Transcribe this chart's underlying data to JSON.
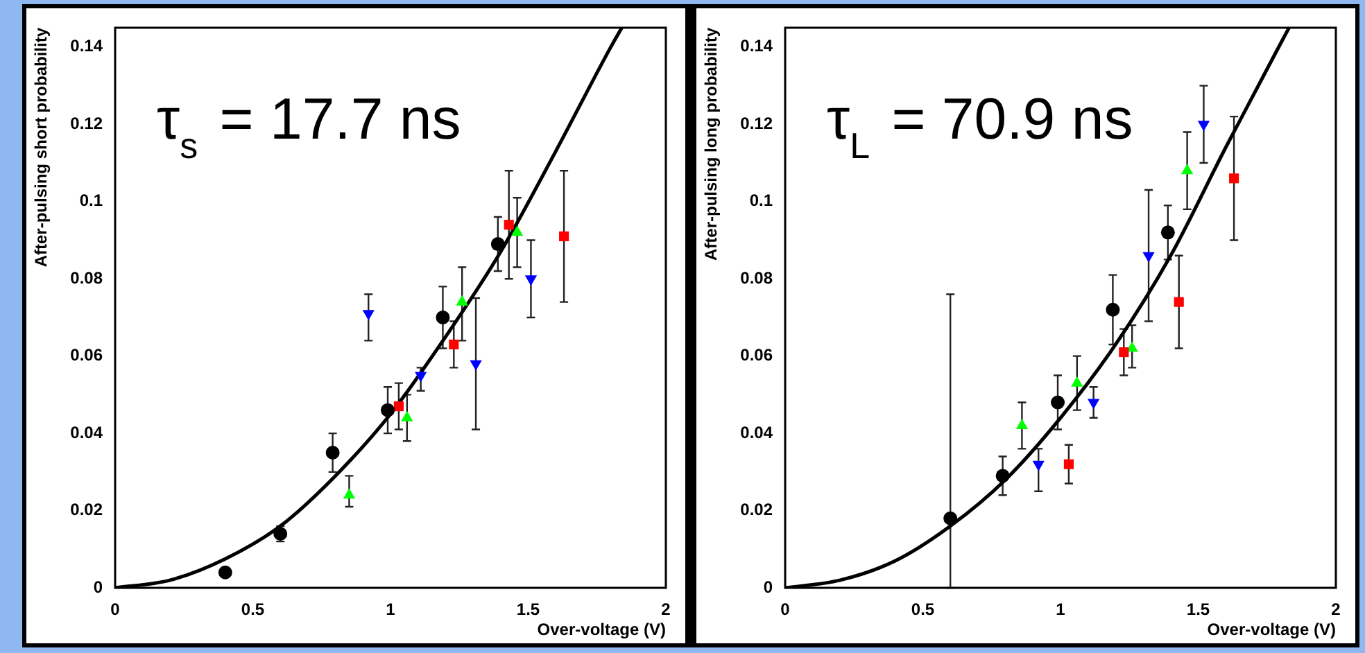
{
  "chart_data": [
    {
      "type": "scatter",
      "xlabel": "Over-voltage (V)",
      "ylabel": "After-pulsing short probability",
      "xlim": [
        0,
        2
      ],
      "ylim": [
        0,
        0.145
      ],
      "xticks": [
        0,
        0.5,
        1,
        1.5,
        2
      ],
      "yticks": [
        0,
        0.02,
        0.04,
        0.06,
        0.08,
        0.1,
        0.12,
        0.14
      ],
      "annotations": [
        "τ$_{s}$ = 17.7 ns"
      ],
      "series": [
        {
          "color": "#000000",
          "marker": "circle",
          "x": [
            0.4,
            0.6,
            0.79,
            0.99,
            1.19,
            1.39
          ],
          "values": [
            0.004,
            0.014,
            0.035,
            0.046,
            0.07,
            0.089
          ],
          "errors": [
            null,
            [
              0.012,
              0.016
            ],
            [
              0.03,
              0.04
            ],
            [
              0.04,
              0.052
            ],
            [
              0.062,
              0.078
            ],
            [
              0.082,
              0.096
            ]
          ]
        },
        {
          "color": "#ff0000",
          "marker": "square",
          "x": [
            1.03,
            1.23,
            1.43,
            1.63
          ],
          "values": [
            0.047,
            0.063,
            0.094,
            0.091
          ],
          "errors": [
            [
              0.041,
              0.053
            ],
            [
              0.057,
              0.069
            ],
            [
              0.08,
              0.108
            ],
            [
              0.074,
              0.108
            ]
          ]
        },
        {
          "color": "#00ff00",
          "marker": "triangle",
          "x": [
            0.85,
            1.06,
            1.26,
            1.46
          ],
          "values": [
            0.024,
            0.044,
            0.074,
            0.092
          ],
          "errors": [
            [
              0.021,
              0.029
            ],
            [
              0.038,
              0.05
            ],
            [
              0.064,
              0.083
            ],
            [
              0.083,
              0.101
            ]
          ]
        },
        {
          "color": "#0000ff",
          "marker": "triangle-down",
          "x": [
            0.92,
            1.11,
            1.31,
            1.51
          ],
          "values": [
            0.071,
            0.055,
            0.058,
            0.08
          ],
          "errors": [
            [
              0.064,
              0.076
            ],
            [
              0.051,
              0.057
            ],
            [
              0.041,
              0.075
            ],
            [
              0.07,
              0.09
            ]
          ]
        },
        {
          "type": "line",
          "color": "#000000",
          "marker": "none",
          "x": [
            0,
            0.2,
            0.4,
            0.6,
            0.8,
            1,
            1.2,
            1.4,
            1.6,
            1.8,
            1.84
          ],
          "values": [
            0,
            0.002,
            0.0075,
            0.016,
            0.029,
            0.045,
            0.065,
            0.087,
            0.113,
            0.14,
            0.145
          ]
        }
      ]
    },
    {
      "type": "scatter",
      "xlabel": "Over-voltage (V)",
      "ylabel": "After-pulsing long probability",
      "xlim": [
        0,
        2
      ],
      "ylim": [
        0,
        0.145
      ],
      "xticks": [
        0,
        0.5,
        1,
        1.5,
        2
      ],
      "yticks": [
        0,
        0.02,
        0.04,
        0.06,
        0.08,
        0.1,
        0.12,
        0.14
      ],
      "annotations": [
        "τ$_{L}$ = 70.9 ns"
      ],
      "series": [
        {
          "color": "#000000",
          "marker": "circle",
          "x": [
            0.6,
            0.79,
            0.99,
            1.19,
            1.39
          ],
          "values": [
            0.018,
            0.029,
            0.048,
            0.072,
            0.092
          ],
          "errors": [
            [
              0,
              0.076
            ],
            [
              0.024,
              0.034
            ],
            [
              0.041,
              0.055
            ],
            [
              0.063,
              0.081
            ],
            [
              0.085,
              0.099
            ]
          ]
        },
        {
          "color": "#ff0000",
          "marker": "square",
          "x": [
            1.03,
            1.23,
            1.43,
            1.63
          ],
          "values": [
            0.032,
            0.061,
            0.074,
            0.106
          ],
          "errors": [
            [
              0.027,
              0.037
            ],
            [
              0.055,
              0.067
            ],
            [
              0.062,
              0.086
            ],
            [
              0.09,
              0.122
            ]
          ]
        },
        {
          "color": "#00ff00",
          "marker": "triangle",
          "x": [
            0.86,
            1.06,
            1.26,
            1.46
          ],
          "values": [
            0.042,
            0.053,
            0.062,
            0.108
          ],
          "errors": [
            [
              0.036,
              0.048
            ],
            [
              0.046,
              0.06
            ],
            [
              0.057,
              0.068
            ],
            [
              0.098,
              0.118
            ]
          ]
        },
        {
          "color": "#0000ff",
          "marker": "triangle-down",
          "x": [
            0.92,
            1.12,
            1.32,
            1.52
          ],
          "values": [
            0.032,
            0.048,
            0.086,
            0.12
          ],
          "errors": [
            [
              0.025,
              0.036
            ],
            [
              0.044,
              0.052
            ],
            [
              0.069,
              0.103
            ],
            [
              0.11,
              0.13
            ]
          ]
        },
        {
          "type": "line",
          "color": "#000000",
          "marker": "none",
          "x": [
            0,
            0.2,
            0.4,
            0.6,
            0.8,
            1,
            1.2,
            1.4,
            1.6,
            1.8,
            1.83
          ],
          "values": [
            0,
            0.002,
            0.007,
            0.016,
            0.028,
            0.044,
            0.063,
            0.086,
            0.114,
            0.141,
            0.145
          ]
        }
      ]
    }
  ]
}
